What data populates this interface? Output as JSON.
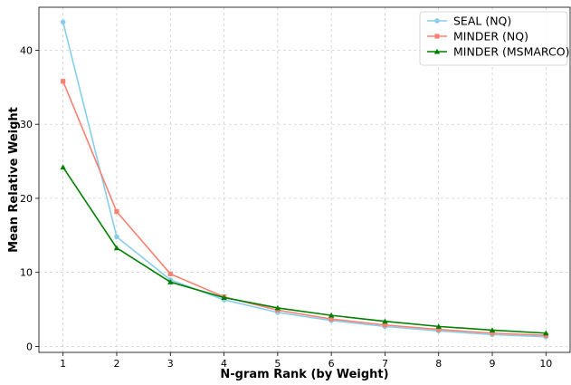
{
  "chart_data": {
    "type": "line",
    "title": "",
    "xlabel": "N-gram Rank (by Weight)",
    "ylabel": "Mean Relative Weight",
    "x": [
      1,
      2,
      3,
      4,
      5,
      6,
      7,
      8,
      9,
      10
    ],
    "xlim": [
      0.55,
      10.45
    ],
    "ylim": [
      -0.8,
      45.8
    ],
    "yticks": [
      0,
      10,
      20,
      30,
      40
    ],
    "grid": true,
    "legend_position": "top-right",
    "series": [
      {
        "name": "SEAL (NQ)",
        "color": "#87CEEB",
        "marker": "circle",
        "values": [
          43.8,
          14.8,
          9.0,
          6.3,
          4.6,
          3.5,
          2.7,
          2.1,
          1.6,
          1.3
        ]
      },
      {
        "name": "MINDER (NQ)",
        "color": "#FA8072",
        "marker": "square",
        "values": [
          35.8,
          18.2,
          9.8,
          6.7,
          4.9,
          3.7,
          2.9,
          2.3,
          1.8,
          1.5
        ]
      },
      {
        "name": "MINDER (MSMARCO)",
        "color": "#008000",
        "marker": "triangle",
        "values": [
          24.2,
          13.3,
          8.7,
          6.6,
          5.2,
          4.2,
          3.4,
          2.7,
          2.2,
          1.8
        ]
      }
    ]
  }
}
